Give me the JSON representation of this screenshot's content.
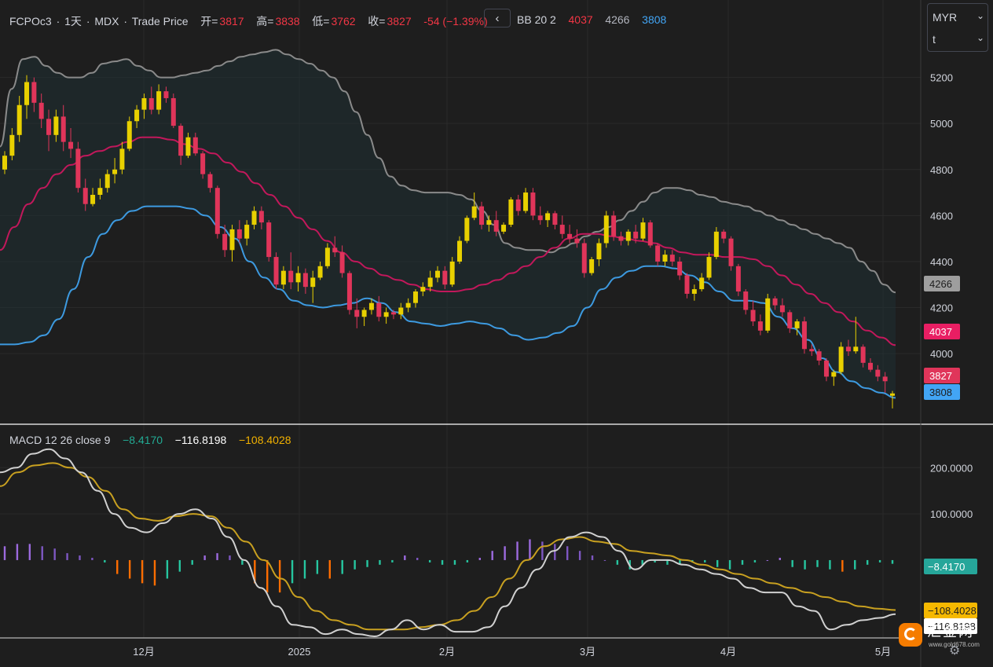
{
  "header": {
    "symbol": "FCPOc3",
    "interval": "1天",
    "exchange": "MDX",
    "price_type": "Trade Price",
    "open_label": "开=",
    "open": "3817",
    "high_label": "高=",
    "high": "3838",
    "low_label": "低=",
    "low": "3762",
    "close_label": "收=",
    "close": "3827",
    "change": "-54 (−1.39%)",
    "sep": "·"
  },
  "collapse_button": "‹",
  "bb": {
    "label": "BB 20 2",
    "middle": "4037",
    "upper": "4266",
    "lower": "3808"
  },
  "macd": {
    "label": "MACD 12 26 close 9",
    "hist": "−8.4170",
    "macd": "−116.8198",
    "signal": "−108.4028"
  },
  "settings": {
    "currency": "MYR",
    "unit": "t"
  },
  "watermark": {
    "name": "汇金网",
    "url": "www.gold678.com"
  },
  "colors": {
    "bg": "#1e1e1e",
    "up": "#e8d000",
    "down": "#e0355a",
    "bb_upper": "#8a8a8a",
    "bb_mid": "#c2185b",
    "bb_lower": "#3d9ae0",
    "macd": "#d0d0d0",
    "signal": "#c8a020"
  },
  "chart_data": [
    {
      "type": "candlestick",
      "title": "FCPOc3 · 1天 · MDX · Trade Price",
      "x_tick_labels": [
        "12月",
        "2025",
        "2月",
        "3月",
        "4月",
        "5月"
      ],
      "y_ticks": [
        4000,
        4200,
        4400,
        4600,
        4800,
        5000,
        5200
      ],
      "ylim": [
        3700,
        5400
      ],
      "last_labels": {
        "upper": "4266",
        "middle": "4037",
        "close": "3827",
        "lower": "3808"
      },
      "candles": [
        [
          4800,
          4880,
          4780,
          4860
        ],
        [
          4860,
          4980,
          4840,
          4950
        ],
        [
          4950,
          5120,
          4920,
          5080
        ],
        [
          5080,
          5210,
          5020,
          5180
        ],
        [
          5180,
          5200,
          5050,
          5090
        ],
        [
          5090,
          5130,
          4980,
          5020
        ],
        [
          5020,
          5060,
          4880,
          4950
        ],
        [
          4950,
          5060,
          4920,
          5030
        ],
        [
          5030,
          5080,
          4880,
          4920
        ],
        [
          4920,
          4980,
          4850,
          4890
        ],
        [
          4890,
          4920,
          4700,
          4720
        ],
        [
          4720,
          4760,
          4620,
          4650
        ],
        [
          4650,
          4720,
          4640,
          4690
        ],
        [
          4690,
          4760,
          4670,
          4720
        ],
        [
          4720,
          4800,
          4700,
          4780
        ],
        [
          4780,
          4850,
          4740,
          4800
        ],
        [
          4800,
          4920,
          4780,
          4890
        ],
        [
          4890,
          5030,
          4880,
          5010
        ],
        [
          5010,
          5080,
          4980,
          5060
        ],
        [
          5060,
          5130,
          5020,
          5110
        ],
        [
          5110,
          5160,
          5040,
          5060
        ],
        [
          5060,
          5170,
          5040,
          5140
        ],
        [
          5140,
          5160,
          5090,
          5110
        ],
        [
          5110,
          5130,
          4980,
          4990
        ],
        [
          4990,
          5000,
          4820,
          4860
        ],
        [
          4860,
          4960,
          4850,
          4940
        ],
        [
          4940,
          4960,
          4860,
          4870
        ],
        [
          4870,
          4880,
          4760,
          4780
        ],
        [
          4780,
          4790,
          4700,
          4720
        ],
        [
          4720,
          4730,
          4500,
          4520
        ],
        [
          4520,
          4560,
          4420,
          4450
        ],
        [
          4450,
          4560,
          4400,
          4540
        ],
        [
          4540,
          4580,
          4480,
          4500
        ],
        [
          4500,
          4580,
          4470,
          4560
        ],
        [
          4560,
          4640,
          4540,
          4620
        ],
        [
          4620,
          4640,
          4540,
          4570
        ],
        [
          4570,
          4580,
          4400,
          4420
        ],
        [
          4420,
          4440,
          4280,
          4300
        ],
        [
          4300,
          4380,
          4280,
          4360
        ],
        [
          4360,
          4440,
          4280,
          4310
        ],
        [
          4310,
          4380,
          4270,
          4350
        ],
        [
          4350,
          4370,
          4260,
          4290
        ],
        [
          4290,
          4360,
          4220,
          4330
        ],
        [
          4330,
          4400,
          4320,
          4380
        ],
        [
          4380,
          4480,
          4370,
          4460
        ],
        [
          4460,
          4510,
          4420,
          4440
        ],
        [
          4440,
          4470,
          4330,
          4350
        ],
        [
          4350,
          4360,
          4170,
          4190
        ],
        [
          4190,
          4240,
          4110,
          4160
        ],
        [
          4160,
          4200,
          4120,
          4190
        ],
        [
          4190,
          4240,
          4170,
          4220
        ],
        [
          4220,
          4250,
          4140,
          4160
        ],
        [
          4160,
          4200,
          4130,
          4180
        ],
        [
          4180,
          4190,
          4150,
          4170
        ],
        [
          4170,
          4220,
          4150,
          4200
        ],
        [
          4200,
          4240,
          4180,
          4220
        ],
        [
          4220,
          4280,
          4200,
          4270
        ],
        [
          4270,
          4310,
          4250,
          4290
        ],
        [
          4290,
          4360,
          4270,
          4330
        ],
        [
          4330,
          4380,
          4310,
          4360
        ],
        [
          4360,
          4380,
          4280,
          4300
        ],
        [
          4300,
          4420,
          4290,
          4400
        ],
        [
          4400,
          4510,
          4390,
          4490
        ],
        [
          4490,
          4600,
          4480,
          4590
        ],
        [
          4590,
          4700,
          4580,
          4640
        ],
        [
          4640,
          4660,
          4540,
          4560
        ],
        [
          4560,
          4600,
          4530,
          4580
        ],
        [
          4580,
          4620,
          4510,
          4530
        ],
        [
          4530,
          4570,
          4520,
          4560
        ],
        [
          4560,
          4680,
          4550,
          4670
        ],
        [
          4670,
          4690,
          4600,
          4620
        ],
        [
          4620,
          4720,
          4610,
          4700
        ],
        [
          4700,
          4720,
          4580,
          4600
        ],
        [
          4600,
          4640,
          4560,
          4580
        ],
        [
          4580,
          4620,
          4550,
          4610
        ],
        [
          4610,
          4620,
          4540,
          4560
        ],
        [
          4560,
          4600,
          4500,
          4520
        ],
        [
          4520,
          4560,
          4480,
          4500
        ],
        [
          4500,
          4540,
          4460,
          4480
        ],
        [
          4480,
          4500,
          4330,
          4350
        ],
        [
          4350,
          4420,
          4340,
          4410
        ],
        [
          4410,
          4500,
          4380,
          4480
        ],
        [
          4480,
          4620,
          4460,
          4600
        ],
        [
          4600,
          4620,
          4490,
          4510
        ],
        [
          4510,
          4530,
          4470,
          4490
        ],
        [
          4490,
          4540,
          4470,
          4530
        ],
        [
          4530,
          4560,
          4480,
          4500
        ],
        [
          4500,
          4590,
          4490,
          4570
        ],
        [
          4570,
          4580,
          4460,
          4470
        ],
        [
          4470,
          4480,
          4380,
          4400
        ],
        [
          4400,
          4450,
          4380,
          4430
        ],
        [
          4430,
          4450,
          4380,
          4400
        ],
        [
          4400,
          4420,
          4320,
          4340
        ],
        [
          4340,
          4350,
          4240,
          4260
        ],
        [
          4260,
          4300,
          4230,
          4280
        ],
        [
          4280,
          4350,
          4270,
          4330
        ],
        [
          4330,
          4440,
          4320,
          4420
        ],
        [
          4420,
          4550,
          4410,
          4530
        ],
        [
          4530,
          4540,
          4480,
          4500
        ],
        [
          4500,
          4510,
          4360,
          4380
        ],
        [
          4380,
          4390,
          4250,
          4270
        ],
        [
          4270,
          4280,
          4170,
          4190
        ],
        [
          4190,
          4230,
          4120,
          4140
        ],
        [
          4140,
          4170,
          4080,
          4100
        ],
        [
          4100,
          4260,
          4090,
          4240
        ],
        [
          4240,
          4250,
          4190,
          4210
        ],
        [
          4210,
          4240,
          4160,
          4180
        ],
        [
          4180,
          4190,
          4090,
          4110
        ],
        [
          4110,
          4150,
          4080,
          4140
        ],
        [
          4140,
          4160,
          4000,
          4020
        ],
        [
          4020,
          4040,
          3990,
          4010
        ],
        [
          4010,
          4020,
          3950,
          3970
        ],
        [
          3970,
          3980,
          3880,
          3900
        ],
        [
          3900,
          3930,
          3860,
          3920
        ],
        [
          3920,
          4050,
          3910,
          4030
        ],
        [
          4030,
          4060,
          3990,
          4010
        ],
        [
          4010,
          4160,
          4000,
          4030
        ],
        [
          4030,
          4040,
          3940,
          3960
        ],
        [
          3960,
          3980,
          3920,
          3930
        ],
        [
          3930,
          3950,
          3880,
          3900
        ],
        [
          3900,
          3920,
          3830,
          3880
        ],
        [
          3817,
          3838,
          3762,
          3827
        ]
      ],
      "bb_upper": [
        4900,
        5150,
        5280,
        5290,
        5250,
        5220,
        5200,
        5200,
        5220,
        5260,
        5270,
        5280,
        5250,
        5230,
        5200,
        5200,
        5210,
        5220,
        5230,
        5250,
        5270,
        5290,
        5300,
        5310,
        5320,
        5300,
        5280,
        5260,
        5230,
        5200,
        5140,
        5050,
        4950,
        4850,
        4770,
        4730,
        4710,
        4700,
        4700,
        4700,
        4690,
        4670,
        4620,
        4560,
        4480,
        4460,
        4450,
        4450,
        4440,
        4460,
        4480,
        4510,
        4530,
        4550,
        4580,
        4620,
        4660,
        4700,
        4720,
        4720,
        4710,
        4690,
        4680,
        4660,
        4650,
        4640,
        4620,
        4600,
        4580,
        4560,
        4540,
        4520,
        4500,
        4480,
        4460,
        4400,
        4360,
        4300,
        4266
      ],
      "bb_middle": [
        4450,
        4550,
        4650,
        4720,
        4780,
        4820,
        4860,
        4880,
        4900,
        4920,
        4940,
        4940,
        4930,
        4910,
        4890,
        4870,
        4830,
        4790,
        4740,
        4690,
        4640,
        4590,
        4540,
        4490,
        4440,
        4400,
        4370,
        4340,
        4320,
        4300,
        4280,
        4270,
        4270,
        4280,
        4300,
        4320,
        4350,
        4380,
        4420,
        4460,
        4500,
        4520,
        4520,
        4510,
        4500,
        4490,
        4480,
        4460,
        4440,
        4430,
        4430,
        4420,
        4420,
        4410,
        4380,
        4340,
        4300,
        4260,
        4220,
        4180,
        4140,
        4100,
        4070,
        4037
      ],
      "bb_lower": [
        4040,
        4040,
        4050,
        4080,
        4150,
        4280,
        4420,
        4520,
        4580,
        4620,
        4640,
        4640,
        4640,
        4630,
        4600,
        4550,
        4500,
        4400,
        4330,
        4280,
        4230,
        4210,
        4200,
        4210,
        4220,
        4240,
        4220,
        4180,
        4140,
        4130,
        4120,
        4130,
        4140,
        4130,
        4110,
        4080,
        4060,
        4070,
        4090,
        4120,
        4200,
        4280,
        4330,
        4360,
        4380,
        4380,
        4370,
        4340,
        4310,
        4270,
        4230,
        4230,
        4220,
        4160,
        4110,
        4060,
        3980,
        3920,
        3880,
        3850,
        3830,
        3808
      ]
    },
    {
      "type": "macd",
      "title": "MACD 12 26 close 9",
      "y_ticks": [
        100,
        200
      ],
      "y_tick_labels": [
        "100.0000",
        "200.0000"
      ],
      "ylim": [
        -165,
        260
      ],
      "last_labels": {
        "hist": "−8.4170",
        "signal": "−108.4028",
        "macd": "−116.8198"
      },
      "macd": [
        190,
        200,
        230,
        240,
        220,
        190,
        150,
        100,
        70,
        60,
        80,
        100,
        110,
        90,
        50,
        0,
        -60,
        -100,
        -140,
        -145,
        -160,
        -150,
        -160,
        -165,
        -150,
        -130,
        -150,
        -140,
        -155,
        -155,
        -145,
        -100,
        -60,
        -20,
        20,
        50,
        60,
        50,
        20,
        -20,
        0,
        0,
        -10,
        -20,
        -30,
        -40,
        -60,
        -70,
        -70,
        -100,
        -110,
        -150,
        -140,
        -130,
        -125,
        -117
      ],
      "signal": [
        160,
        190,
        205,
        210,
        200,
        180,
        150,
        110,
        90,
        85,
        95,
        100,
        95,
        70,
        40,
        0,
        -40,
        -80,
        -110,
        -130,
        -140,
        -150,
        -150,
        -150,
        -145,
        -140,
        -130,
        -110,
        -80,
        -40,
        0,
        30,
        45,
        50,
        40,
        35,
        20,
        15,
        10,
        0,
        -10,
        -20,
        -30,
        -40,
        -50,
        -60,
        -70,
        -80,
        -90,
        -100,
        -105,
        -108
      ],
      "histogram": [
        30,
        35,
        35,
        30,
        25,
        15,
        10,
        5,
        -5,
        -30,
        -40,
        -50,
        -55,
        -40,
        -25,
        -10,
        10,
        15,
        10,
        -10,
        -50,
        -70,
        -70,
        -50,
        -40,
        -30,
        -40,
        -30,
        -20,
        -15,
        -10,
        -5,
        10,
        5,
        -5,
        -10,
        -10,
        -5,
        5,
        20,
        30,
        40,
        45,
        40,
        35,
        30,
        20,
        10,
        0,
        -10,
        -20,
        -10,
        -5,
        -10,
        -10,
        -5,
        -5,
        -15,
        -20,
        -10,
        -5,
        0,
        5,
        -15,
        -20,
        -15,
        -20,
        -25,
        -20,
        -10,
        -5,
        -8
      ]
    }
  ]
}
